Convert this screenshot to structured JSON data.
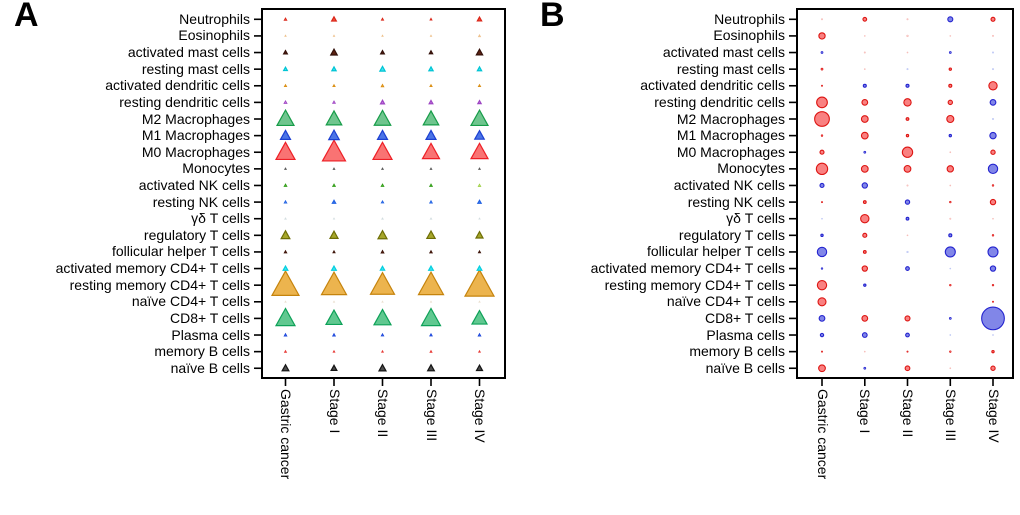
{
  "chart_data": {
    "type": "bubble-matrix",
    "description": "Two-panel immune cell composition figure; marker size encodes magnitude",
    "x_categories": [
      "Gastric cancer",
      "Stage I",
      "Stage II",
      "Stage III",
      "Stage IV"
    ],
    "y_categories": [
      "Neutrophils",
      "Eosinophils",
      "activated mast cells",
      "resting mast cells",
      "activated dendritic cells",
      "resting dendritic cells",
      "M2 Macrophages",
      "M1 Macrophages",
      "M0 Macrophages",
      "Monocytes",
      "activated NK cells",
      "resting NK cells",
      "γδ T cells",
      "regulatory T cells",
      "follicular helper T cells",
      "activated memory CD4+ T cells",
      "resting memory CD4+ T cells",
      "naïve CD4+ T cells",
      "CD8+ T cells",
      "Plasma cells",
      "memory B cells",
      "naïve B cells"
    ],
    "panels": [
      {
        "letter": "A",
        "marker": "triangle",
        "rows": [
          {
            "label": "Neutrophils",
            "color": "neutrophils",
            "sizes": [
              2.7,
              4.7,
              2.3,
              2.0,
              4.3
            ]
          },
          {
            "label": "Eosinophils",
            "color": "eosinophils",
            "sizes": [
              1.3,
              1.3,
              1.3,
              1.3,
              2.0
            ]
          },
          {
            "label": "activated mast cells",
            "color": "mast_act",
            "sizes": [
              3.7,
              6.5,
              3.7,
              3.3,
              6.3
            ]
          },
          {
            "label": "resting mast cells",
            "color": "mast_rest",
            "sizes": [
              3.7,
              4.3,
              5.3,
              4.3,
              4.3
            ]
          },
          {
            "label": "activated dendritic cells",
            "color": "dend_act",
            "sizes": [
              2.3,
              2.3,
              2.7,
              2.3,
              2.3
            ]
          },
          {
            "label": "resting dendritic cells",
            "color": "dend_rest",
            "sizes": [
              3.0,
              2.7,
              4.0,
              3.7,
              3.3
            ]
          },
          {
            "label": "M2 Macrophages",
            "color": "m2",
            "sizes": [
              17,
              15.5,
              16.5,
              15.5,
              17
            ]
          },
          {
            "label": "M1 Macrophages",
            "color": "m1",
            "sizes": [
              10,
              10.5,
              10,
              10,
              9.5
            ]
          },
          {
            "label": "M0 Macrophages",
            "color": "m0",
            "sizes": [
              19,
              23,
              19,
              17,
              17
            ]
          },
          {
            "label": "Monocytes",
            "color": "mono",
            "sizes": [
              1.7,
              1.7,
              1.7,
              1.7,
              1.7
            ]
          },
          {
            "label": "activated NK cells",
            "color": "nk_act",
            "sizes": [
              2.8,
              2.8,
              2.8,
              2.8,
              2.5
            ],
            "cell_colors": [
              null,
              null,
              null,
              null,
              "nk_act_light"
            ]
          },
          {
            "label": "resting NK cells",
            "color": "nk_rest",
            "sizes": [
              2.7,
              3.3,
              2.5,
              2.7,
              3.3
            ]
          },
          {
            "label": "γδ T cells",
            "color": "gd",
            "sizes": [
              1.5,
              1.2,
              1.5,
              1.5,
              1.2
            ]
          },
          {
            "label": "regulatory T cells",
            "color": "treg",
            "sizes": [
              8.7,
              8,
              9,
              8.3,
              7
            ]
          },
          {
            "label": "follicular helper T cells",
            "color": "tfh",
            "sizes": [
              2.7,
              2.3,
              3,
              2.7,
              2.3
            ]
          },
          {
            "label": "activated memory CD4+ T cells",
            "color": "cd4_actmem",
            "sizes": [
              4.7,
              4.7,
              4.3,
              4.7,
              4.7
            ]
          },
          {
            "label": "resting memory CD4+ T cells",
            "color": "cd4_restmem",
            "sizes": [
              27,
              25,
              24,
              25,
              29
            ]
          },
          {
            "label": "naïve CD4+ T cells",
            "color": "cd4_naive",
            "sizes": [
              1.2,
              1.2,
              1.2,
              1.2,
              1.2
            ]
          },
          {
            "label": "CD8+ T cells",
            "color": "cd8",
            "sizes": [
              19,
              16,
              17,
              19,
              15
            ]
          },
          {
            "label": "Plasma cells",
            "color": "plasma",
            "sizes": [
              2.7,
              2.7,
              2.5,
              2.5,
              2.7
            ]
          },
          {
            "label": "memory B cells",
            "color": "b_mem",
            "sizes": [
              2,
              1.7,
              1.7,
              2,
              1.7
            ]
          },
          {
            "label": "naïve B cells",
            "color": "b_naive",
            "sizes": [
              6.7,
              5.7,
              7,
              6.7,
              6
            ]
          }
        ]
      },
      {
        "letter": "B",
        "marker": "circle",
        "rows": [
          {
            "label": "Neutrophils",
            "cells": [
              {
                "d": 1.3,
                "c": "fr"
              },
              {
                "d": 3.7,
                "c": "r"
              },
              {
                "d": 1.3,
                "c": "fr"
              },
              {
                "d": 5,
                "c": "b"
              },
              {
                "d": 4,
                "c": "r"
              }
            ]
          },
          {
            "label": "Eosinophils",
            "cells": [
              {
                "d": 6.3,
                "c": "r"
              },
              {
                "d": 1,
                "c": "fr"
              },
              {
                "d": 1.7,
                "c": "fr"
              },
              {
                "d": 1,
                "c": "fr"
              },
              {
                "d": 1.3,
                "c": "fr"
              }
            ]
          },
          {
            "label": "activated mast cells",
            "cells": [
              {
                "d": 2,
                "c": "b"
              },
              {
                "d": 1.3,
                "c": "fr"
              },
              {
                "d": 1,
                "c": "fr"
              },
              {
                "d": 2,
                "c": "b"
              },
              {
                "d": 1.3,
                "c": "fb"
              }
            ]
          },
          {
            "label": "resting mast cells",
            "cells": [
              {
                "d": 2,
                "c": "r"
              },
              {
                "d": 1,
                "c": "fr"
              },
              {
                "d": 1.3,
                "c": "fb"
              },
              {
                "d": 2.3,
                "c": "r"
              },
              {
                "d": 1.3,
                "c": "fb"
              }
            ]
          },
          {
            "label": "activated dendritic cells",
            "cells": [
              {
                "d": 1.3,
                "c": "r"
              },
              {
                "d": 3,
                "c": "b"
              },
              {
                "d": 3,
                "c": "b"
              },
              {
                "d": 3,
                "c": "r"
              },
              {
                "d": 8.3,
                "c": "r"
              }
            ]
          },
          {
            "label": "resting dendritic cells",
            "cells": [
              {
                "d": 10.7,
                "c": "r"
              },
              {
                "d": 5.7,
                "c": "r"
              },
              {
                "d": 7.3,
                "c": "r"
              },
              {
                "d": 4.3,
                "c": "r"
              },
              {
                "d": 5.7,
                "c": "b"
              }
            ]
          },
          {
            "label": "M2 Macrophages",
            "cells": [
              {
                "d": 14.7,
                "c": "r"
              },
              {
                "d": 6.7,
                "c": "r"
              },
              {
                "d": 2.7,
                "c": "r"
              },
              {
                "d": 7,
                "c": "r"
              },
              {
                "d": 1.3,
                "c": "fb"
              }
            ]
          },
          {
            "label": "M1 Macrophages",
            "cells": [
              {
                "d": 1.7,
                "c": "r"
              },
              {
                "d": 6.7,
                "c": "r"
              },
              {
                "d": 2.3,
                "c": "r"
              },
              {
                "d": 2.3,
                "c": "b"
              },
              {
                "d": 6.3,
                "c": "b"
              }
            ]
          },
          {
            "label": "M0 Macrophages",
            "cells": [
              {
                "d": 4,
                "c": "r"
              },
              {
                "d": 2,
                "c": "b"
              },
              {
                "d": 10.3,
                "c": "r"
              },
              {
                "d": 1,
                "c": "fr"
              },
              {
                "d": 4.3,
                "c": "r"
              }
            ]
          },
          {
            "label": "Monocytes",
            "cells": [
              {
                "d": 11.3,
                "c": "r"
              },
              {
                "d": 6.7,
                "c": "r"
              },
              {
                "d": 6.7,
                "c": "r"
              },
              {
                "d": 6.3,
                "c": "r"
              },
              {
                "d": 9.3,
                "c": "b"
              }
            ]
          },
          {
            "label": "activated NK cells",
            "cells": [
              {
                "d": 4,
                "c": "b"
              },
              {
                "d": 5.3,
                "c": "b"
              },
              {
                "d": 1.3,
                "c": "fr"
              },
              {
                "d": 1,
                "c": "fr"
              },
              {
                "d": 1.7,
                "c": "r"
              }
            ]
          },
          {
            "label": "resting NK cells",
            "cells": [
              {
                "d": 1.3,
                "c": "r"
              },
              {
                "d": 2.7,
                "c": "r"
              },
              {
                "d": 4.3,
                "c": "b"
              },
              {
                "d": 1.7,
                "c": "r"
              },
              {
                "d": 5.3,
                "c": "r"
              }
            ]
          },
          {
            "label": "γδ T cells",
            "cells": [
              {
                "d": 1,
                "c": "fb"
              },
              {
                "d": 8.3,
                "c": "r"
              },
              {
                "d": 2.7,
                "c": "b"
              },
              {
                "d": 1.3,
                "c": "fr"
              },
              {
                "d": 1,
                "c": "fr"
              }
            ]
          },
          {
            "label": "regulatory T cells",
            "cells": [
              {
                "d": 2.3,
                "c": "b"
              },
              {
                "d": 4,
                "c": "r"
              },
              {
                "d": 1,
                "c": "fr"
              },
              {
                "d": 3,
                "c": "b"
              },
              {
                "d": 1.7,
                "c": "r"
              }
            ]
          },
          {
            "label": "follicular helper T cells",
            "cells": [
              {
                "d": 9.3,
                "c": "b"
              },
              {
                "d": 2.7,
                "c": "r"
              },
              {
                "d": 1.5,
                "c": "fb"
              },
              {
                "d": 10,
                "c": "b"
              },
              {
                "d": 10,
                "c": "b"
              }
            ]
          },
          {
            "label": "activated memory CD4+ T cells",
            "cells": [
              {
                "d": 1.7,
                "c": "b"
              },
              {
                "d": 5.3,
                "c": "r"
              },
              {
                "d": 3.7,
                "c": "b"
              },
              {
                "d": 1,
                "c": "fb"
              },
              {
                "d": 5.3,
                "c": "b"
              }
            ]
          },
          {
            "label": "resting memory CD4+ T cells",
            "cells": [
              {
                "d": 9.3,
                "c": "r"
              },
              {
                "d": 2.3,
                "c": "b"
              },
              {
                "d": 0,
                "c": "n"
              },
              {
                "d": 1.7,
                "c": "r"
              },
              {
                "d": 1.7,
                "c": "r"
              }
            ]
          },
          {
            "label": "naïve CD4+ T cells",
            "cells": [
              {
                "d": 8,
                "c": "r"
              },
              {
                "d": 0,
                "c": "n"
              },
              {
                "d": 0,
                "c": "n"
              },
              {
                "d": 0,
                "c": "n"
              },
              {
                "d": 1.3,
                "c": "r"
              }
            ]
          },
          {
            "label": "CD8+ T cells",
            "cells": [
              {
                "d": 5.7,
                "c": "b"
              },
              {
                "d": 5.7,
                "c": "r"
              },
              {
                "d": 5,
                "c": "r"
              },
              {
                "d": 2,
                "c": "b"
              },
              {
                "d": 22.7,
                "c": "b"
              }
            ]
          },
          {
            "label": "Plasma cells",
            "cells": [
              {
                "d": 3.3,
                "c": "b"
              },
              {
                "d": 4.7,
                "c": "b"
              },
              {
                "d": 3.7,
                "c": "b"
              },
              {
                "d": 1,
                "c": "fb"
              },
              {
                "d": 1,
                "c": "fb"
              }
            ]
          },
          {
            "label": "memory B cells",
            "cells": [
              {
                "d": 1.3,
                "c": "r"
              },
              {
                "d": 1,
                "c": "fr"
              },
              {
                "d": 1.3,
                "c": "r"
              },
              {
                "d": 1.7,
                "c": "r"
              },
              {
                "d": 2.3,
                "c": "r"
              }
            ]
          },
          {
            "label": "naïve B cells",
            "cells": [
              {
                "d": 6.7,
                "c": "r"
              },
              {
                "d": 2,
                "c": "b"
              },
              {
                "d": 4.7,
                "c": "r"
              },
              {
                "d": 1,
                "c": "fr"
              },
              {
                "d": 4.3,
                "c": "r"
              }
            ]
          }
        ]
      }
    ],
    "palette_panel_a": {
      "neutrophils": {
        "s": "#d92518",
        "f": "#f4503c"
      },
      "eosinophils": {
        "s": "#eec08a",
        "f": "#f8e0bf"
      },
      "mast_act": {
        "s": "#33100a",
        "f": "#5c2212"
      },
      "mast_rest": {
        "s": "#00c4d4",
        "f": "#40e4f0"
      },
      "dend_act": {
        "s": "#d98d12",
        "f": "#f2ab32"
      },
      "dend_rest": {
        "s": "#9d45c2",
        "f": "#c87ae2"
      },
      "m2": {
        "s": "#169c48",
        "f": "#6fc58e"
      },
      "m1": {
        "s": "#1c40d2",
        "f": "#4b74e6"
      },
      "m0": {
        "s": "#ee1f26",
        "f": "#f97373"
      },
      "mono": {
        "s": "#5a5a5a",
        "f": "#7d7d7d"
      },
      "nk_act": {
        "s": "#2f9a16",
        "f": "#54ba34"
      },
      "nk_act_light": {
        "s": "#9ccf42",
        "f": "#cdeb8a"
      },
      "nk_rest": {
        "s": "#1f60e2",
        "f": "#4e88f2"
      },
      "gd": {
        "s": "#d3dde0",
        "f": "#eef4f6"
      },
      "treg": {
        "s": "#6e6e05",
        "f": "#a6a62a"
      },
      "tfh": {
        "s": "#3a1208",
        "f": "#5e2511"
      },
      "cd4_actmem": {
        "s": "#06cede",
        "f": "#3ce8f4"
      },
      "cd4_restmem": {
        "s": "#c5830c",
        "f": "#ecb44e"
      },
      "cd4_naive": {
        "s": "#e9dfcf",
        "f": "#f8f2e8"
      },
      "cd8": {
        "s": "#0da158",
        "f": "#60c890"
      },
      "plasma": {
        "s": "#1a44da",
        "f": "#3f6cee"
      },
      "b_mem": {
        "s": "#e63430",
        "f": "#f97068"
      },
      "b_naive": {
        "s": "#141414",
        "f": "#4d4d4d"
      }
    },
    "palette_panel_b": {
      "r": {
        "s": "#dd1512",
        "f": "#f98181"
      },
      "b": {
        "s": "#2424cf",
        "f": "#8186e8"
      },
      "fr": {
        "s": "#f6bcb8",
        "f": "#fbdedb"
      },
      "fb": {
        "s": "#bcc6f4",
        "f": "#dfe5fb"
      }
    }
  }
}
